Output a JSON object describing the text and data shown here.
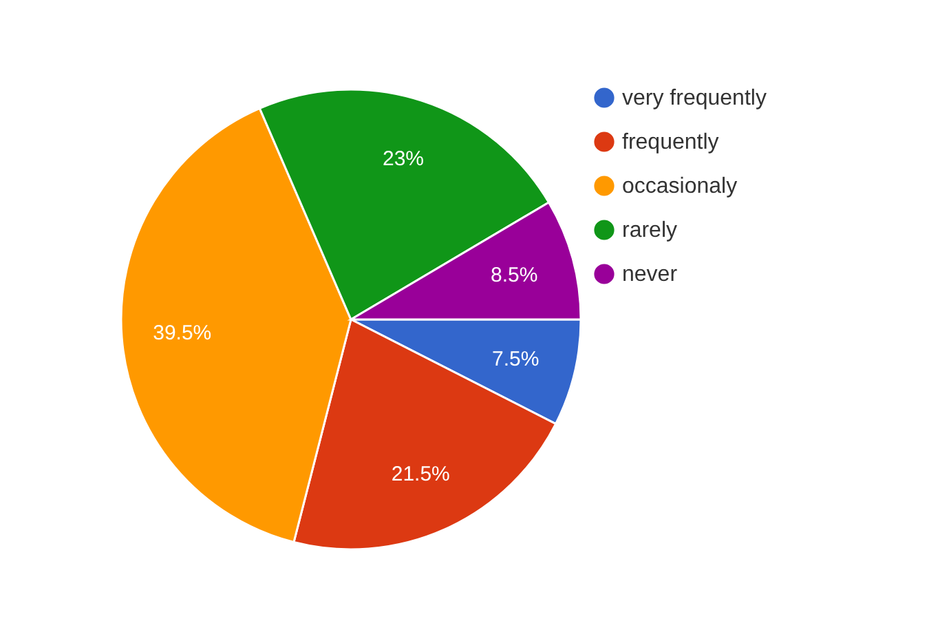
{
  "chart_data": {
    "type": "pie",
    "categories": [
      "very frequently",
      "frequently",
      "occasionaly",
      "rarely",
      "never"
    ],
    "values": [
      7.5,
      21.5,
      39.5,
      23,
      8.5
    ],
    "colors": [
      "#3366cc",
      "#dc3912",
      "#ff9900",
      "#109618",
      "#990099"
    ],
    "value_labels": [
      "7.5%",
      "21.5%",
      "39.5%",
      "23%",
      "8.5%"
    ],
    "legend": "top right"
  }
}
